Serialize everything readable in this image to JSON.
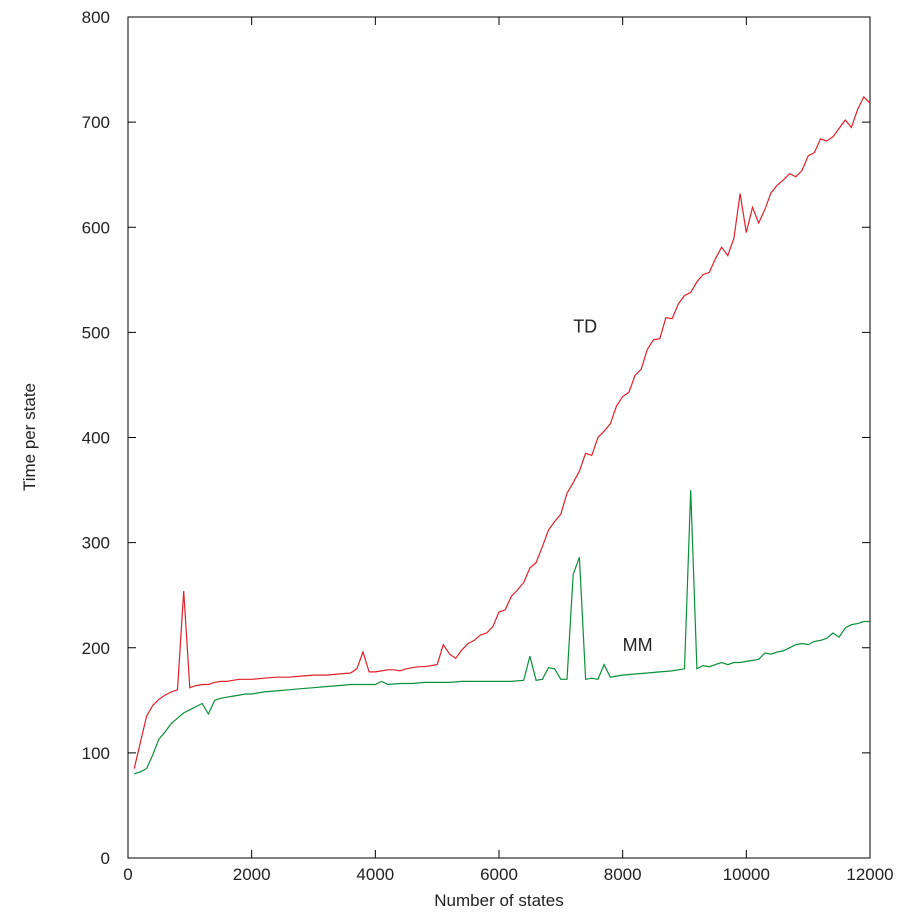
{
  "chart_data": {
    "type": "line",
    "title": "",
    "xlabel": "Number of states",
    "ylabel": "Time per state",
    "xlim": [
      0,
      12000
    ],
    "ylim": [
      0,
      800
    ],
    "xticks": [
      "0",
      "2000",
      "4000",
      "6000",
      "8000",
      "10000",
      "12000"
    ],
    "yticks": [
      "0",
      "100",
      "200",
      "300",
      "400",
      "500",
      "600",
      "700",
      "800"
    ],
    "grid": false,
    "legend": "none",
    "series": [
      {
        "name": "TD",
        "color": "#e0202a",
        "label_at": [
          7200,
          500
        ],
        "x": [
          100,
          200,
          300,
          400,
          500,
          600,
          700,
          800,
          900,
          1000,
          1100,
          1200,
          1300,
          1400,
          1500,
          1600,
          1700,
          1800,
          1900,
          2000,
          2200,
          2400,
          2600,
          2800,
          3000,
          3200,
          3400,
          3600,
          3700,
          3800,
          3900,
          4000,
          4100,
          4200,
          4300,
          4400,
          4500,
          4600,
          4700,
          4800,
          4900,
          5000,
          5100,
          5200,
          5300,
          5400,
          5500,
          5600,
          5700,
          5800,
          5900,
          6000,
          6100,
          6200,
          6300,
          6400,
          6500,
          6600,
          6700,
          6800,
          6900,
          7000,
          7100,
          7200,
          7300,
          7400,
          7500,
          7600,
          7700,
          7800,
          7900,
          8000,
          8100,
          8200,
          8300,
          8400,
          8500,
          8600,
          8700,
          8800,
          8900,
          9000,
          9100,
          9200,
          9300,
          9400,
          9500,
          9600,
          9700,
          9800,
          9900,
          10000,
          10100,
          10200,
          10300,
          10400,
          10500,
          10600,
          10700,
          10800,
          10900,
          11000,
          11100,
          11200,
          11300,
          11400,
          11500,
          11600,
          11700,
          11800,
          11900,
          12000
        ],
        "y": [
          85,
          110,
          135,
          145,
          151,
          155,
          158,
          160,
          254,
          162,
          164,
          165,
          165,
          167,
          168,
          168,
          169,
          170,
          170,
          170,
          171,
          172,
          172,
          173,
          174,
          174,
          175,
          176,
          180,
          196,
          177,
          177,
          178,
          179,
          179,
          178,
          180,
          181,
          182,
          182,
          183,
          184,
          203,
          194,
          190,
          198,
          204,
          207,
          212,
          214,
          220,
          234,
          236,
          249,
          255,
          262,
          276,
          281,
          296,
          312,
          320,
          327,
          347,
          357,
          368,
          385,
          383,
          400,
          406,
          413,
          430,
          439,
          443,
          459,
          465,
          484,
          493,
          494,
          514,
          513,
          527,
          535,
          538,
          548,
          555,
          557,
          570,
          581,
          573,
          590,
          632,
          595,
          619,
          604,
          617,
          633,
          640,
          645,
          651,
          648,
          654,
          668,
          671,
          684,
          682,
          686,
          694,
          702,
          695,
          712,
          724,
          718
        ]
      },
      {
        "name": "MM",
        "color": "#0b8f3a",
        "label_at": [
          8000,
          197
        ],
        "x": [
          100,
          200,
          300,
          400,
          500,
          600,
          700,
          800,
          900,
          1000,
          1100,
          1200,
          1300,
          1400,
          1500,
          1600,
          1700,
          1800,
          1900,
          2000,
          2200,
          2400,
          2600,
          2800,
          3000,
          3200,
          3400,
          3600,
          3800,
          4000,
          4100,
          4200,
          4400,
          4600,
          4800,
          5000,
          5200,
          5400,
          5600,
          5800,
          6000,
          6200,
          6400,
          6500,
          6600,
          6700,
          6800,
          6900,
          7000,
          7100,
          7200,
          7300,
          7400,
          7500,
          7600,
          7700,
          7800,
          7900,
          8000,
          8200,
          8400,
          8600,
          8800,
          9000,
          9100,
          9200,
          9300,
          9400,
          9500,
          9600,
          9700,
          9800,
          9900,
          10000,
          10100,
          10200,
          10300,
          10400,
          10500,
          10600,
          10700,
          10800,
          10900,
          11000,
          11100,
          11200,
          11300,
          11400,
          11500,
          11600,
          11700,
          11800,
          11900,
          12000
        ],
        "y": [
          80,
          82,
          85,
          98,
          113,
          120,
          128,
          133,
          138,
          141,
          144,
          147,
          137,
          150,
          152,
          153,
          154,
          155,
          156,
          156,
          158,
          159,
          160,
          161,
          162,
          163,
          164,
          165,
          165,
          165,
          168,
          165,
          166,
          166,
          167,
          167,
          167,
          168,
          168,
          168,
          168,
          168,
          169,
          192,
          169,
          170,
          181,
          180,
          170,
          170,
          270,
          286,
          170,
          171,
          170,
          184,
          172,
          173,
          174,
          175,
          176,
          177,
          178,
          180,
          350,
          180,
          183,
          182,
          184,
          186,
          184,
          186,
          186,
          187,
          188,
          189,
          195,
          194,
          196,
          197,
          200,
          203,
          204,
          203,
          206,
          207,
          209,
          214,
          210,
          219,
          222,
          223,
          225,
          225
        ]
      }
    ]
  }
}
